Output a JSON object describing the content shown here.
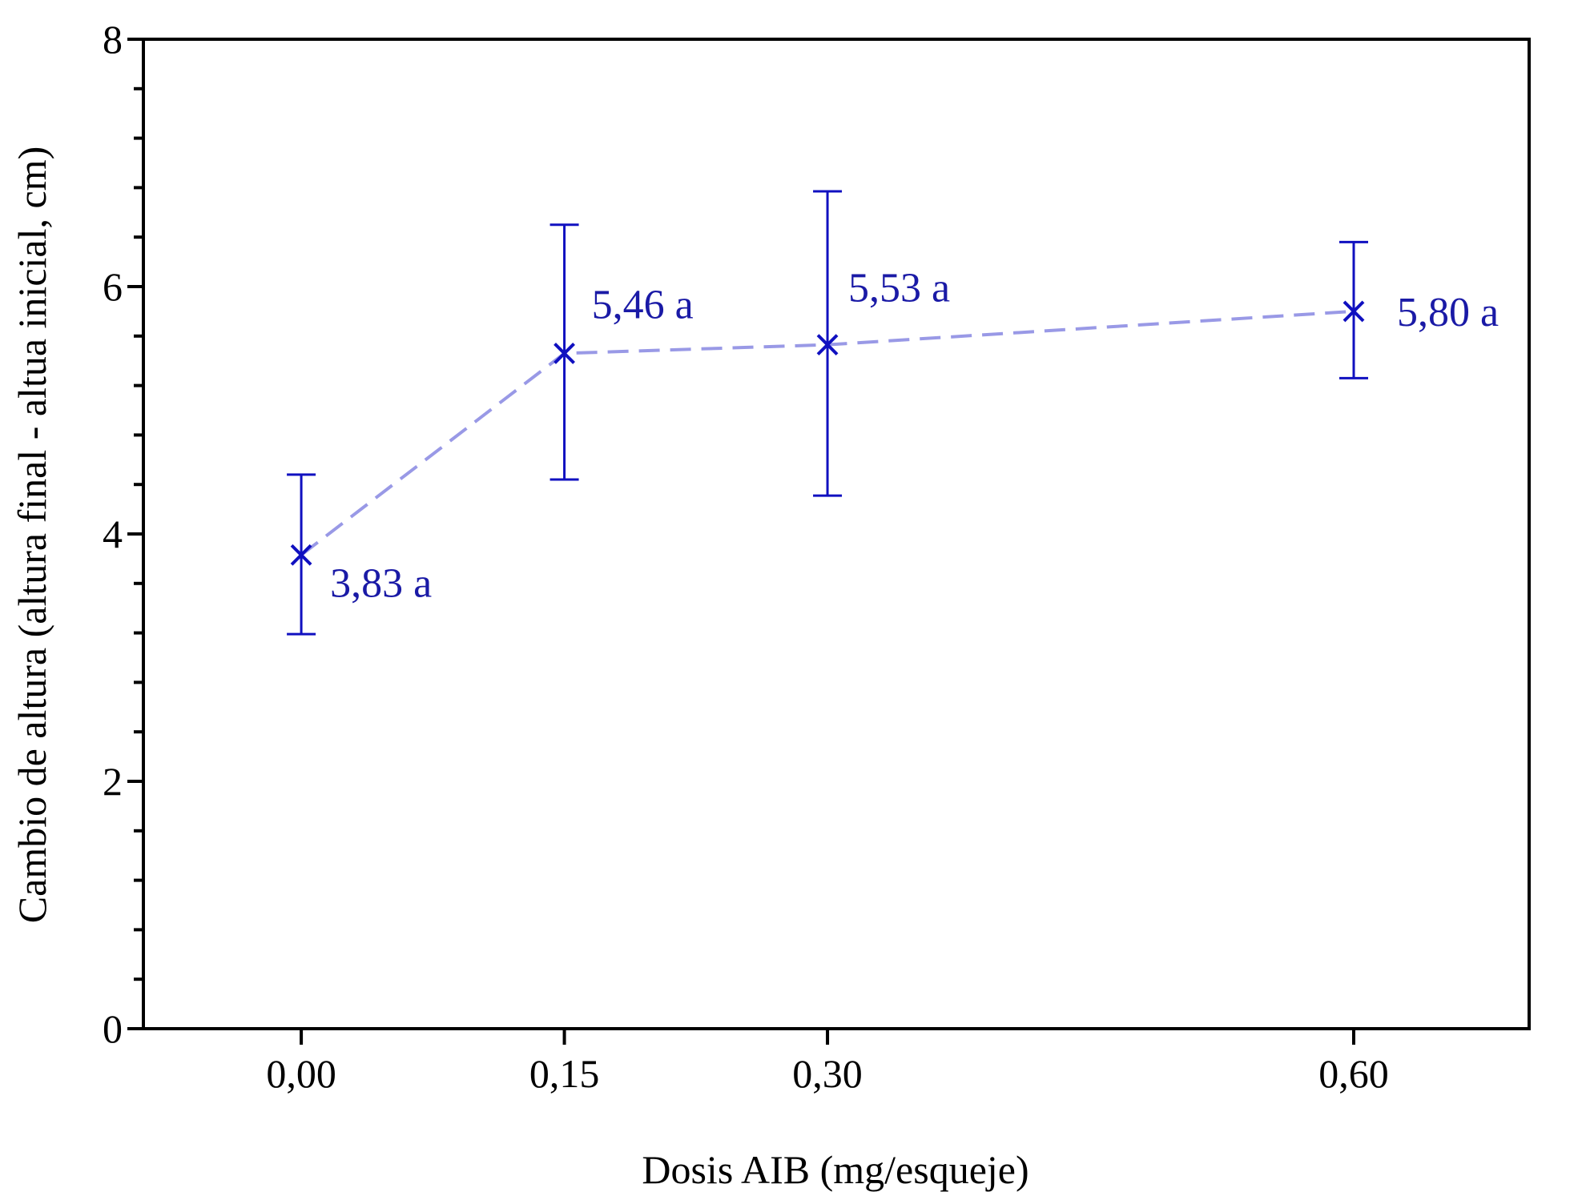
{
  "chart_data": {
    "type": "line",
    "xlabel": "Dosis AIB (mg/esqueje)",
    "ylabel": "Cambio de altura (altura final - altua inicial, cm)",
    "categories": [
      "0,00",
      "0,15",
      "0,30",
      "0,60"
    ],
    "x": [
      0.0,
      0.15,
      0.3,
      0.6
    ],
    "xlim": [
      -0.09,
      0.7
    ],
    "ylim": [
      0,
      8
    ],
    "y_major_ticks": [
      0,
      2,
      4,
      6,
      8
    ],
    "y_minor_step": 0.4,
    "grid": false,
    "legend": "none",
    "series": [
      {
        "values": [
          3.83,
          5.46,
          5.53,
          5.8
        ],
        "error_upper": [
          4.48,
          6.5,
          6.77,
          6.36
        ],
        "error_lower": [
          3.19,
          4.44,
          4.31,
          5.26
        ],
        "point_labels": [
          "3,83 a",
          "5,46 a",
          "5,53 a",
          "5,80 a"
        ]
      }
    ],
    "colors": {
      "marker": "#1010C0",
      "line": "#9999E6",
      "label": "#1A1AA6",
      "axis": "#000000"
    }
  }
}
